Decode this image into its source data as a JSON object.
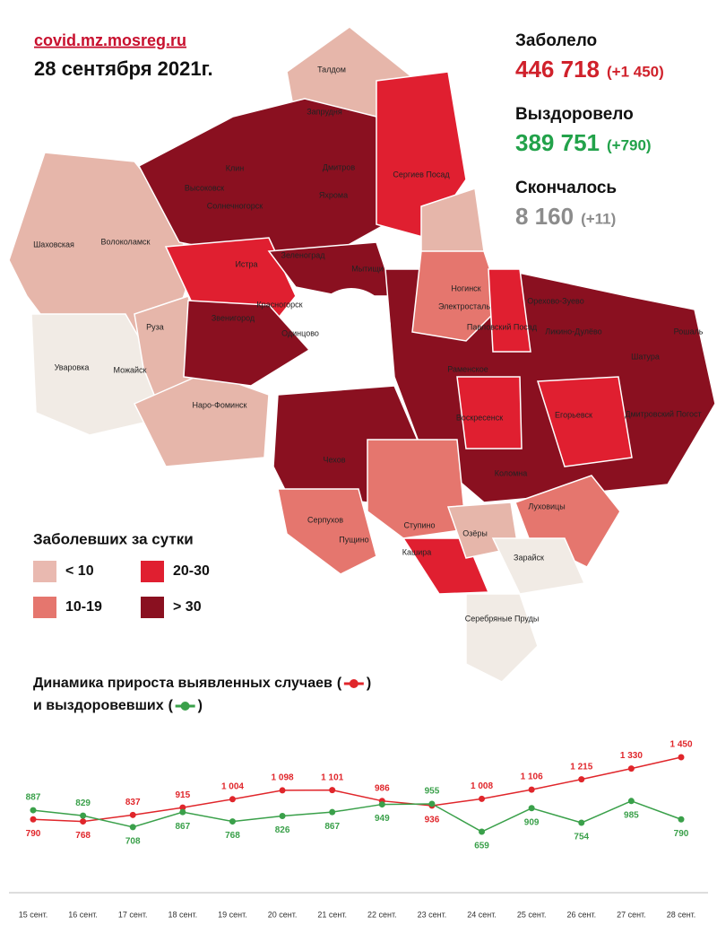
{
  "header": {
    "site": "covid.mz.mosreg.ru",
    "date": "28 сентября 2021г."
  },
  "stats": [
    {
      "label": "Заболело",
      "value": "446 718",
      "delta": "(+1 450)",
      "color": "#d0212b"
    },
    {
      "label": "Выздоровело",
      "value": "389 751",
      "delta": "(+790)",
      "color": "#22a24a"
    },
    {
      "label": "Скончалось",
      "value": "8 160",
      "delta": "(+11)",
      "color": "#8c8c8c"
    }
  ],
  "map": {
    "legend_title": "Заболевших за сутки",
    "legend": [
      {
        "label": "< 10",
        "color": "#e9b9b0"
      },
      {
        "label": "10-19",
        "color": "#e5766e"
      },
      {
        "label": "20-30",
        "color": "#e01f30"
      },
      {
        "label": "> 30",
        "color": "#8a1020"
      }
    ],
    "labels": [
      "Талдом",
      "Запрудня",
      "Дмитров",
      "Сергиев Посад",
      "Клин",
      "Высоковск",
      "Солнечногорск",
      "Яхрома",
      "Шаховская",
      "Волоколамск",
      "Зеленоград",
      "Мытищи",
      "Истра",
      "Красногорск",
      "Ногинск",
      "Электросталь",
      "Орехово-Зуево",
      "Павловский Посад",
      "Ликино-Дулёво",
      "Звенигород",
      "Одинцово",
      "Руза",
      "Рошаль",
      "Шатура",
      "Уваровка",
      "Можайск",
      "Раменское",
      "Наро-Фоминск",
      "Воскресенск",
      "Егорьевск",
      "Дмитровский Погост",
      "Чехов",
      "Коломна",
      "Серпухов",
      "Пущино",
      "Ступино",
      "Озёры",
      "Луховицы",
      "Кашира",
      "Зарайск",
      "Серебряные Пруды"
    ]
  },
  "chart_data": {
    "type": "line",
    "title_line1": "Динамика прироста выявленных случаев",
    "title_line2": "и выздоровевших",
    "open_paren": "(",
    "close_paren": ")",
    "categories": [
      "15 сент.",
      "16 сент.",
      "17 сент.",
      "18 сент.",
      "19 сент.",
      "20 сент.",
      "21 сент.",
      "22 сент.",
      "23 сент.",
      "24 сент.",
      "25 сент.",
      "26 сент.",
      "27 сент.",
      "28 сент."
    ],
    "series": [
      {
        "color": "#e0262b",
        "values": [
          790,
          768,
          837,
          915,
          1004,
          1098,
          1101,
          986,
          936,
          1008,
          1106,
          1215,
          1330,
          1450
        ],
        "value_labels": [
          "790",
          "768",
          "837",
          "915",
          "1 004",
          "1 098",
          "1 101",
          "986",
          "936",
          "1 008",
          "1 106",
          "1 215",
          "1 330",
          "1 450"
        ]
      },
      {
        "color": "#3aa04a",
        "values": [
          887,
          829,
          708,
          867,
          768,
          826,
          867,
          949,
          955,
          659,
          909,
          754,
          985,
          790
        ],
        "value_labels": [
          "887",
          "829",
          "708",
          "867",
          "768",
          "826",
          "867",
          "949",
          "955",
          "659",
          "909",
          "754",
          "985",
          "790"
        ]
      }
    ]
  }
}
